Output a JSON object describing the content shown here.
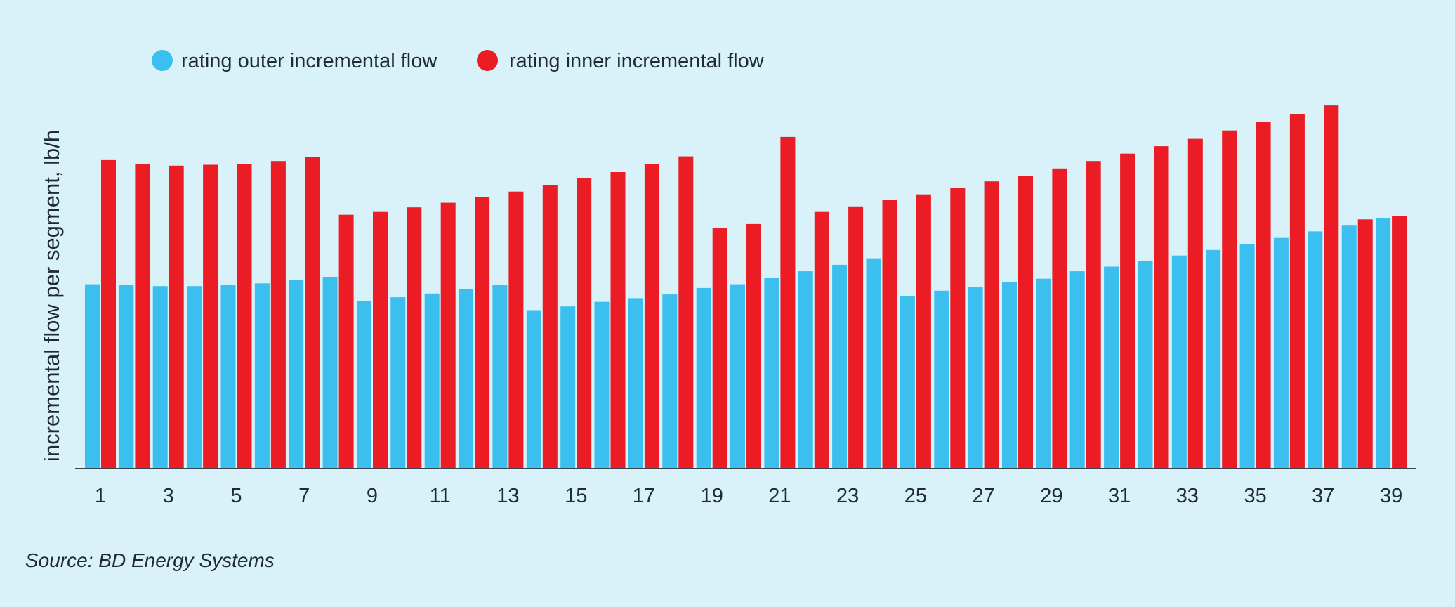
{
  "source": "Source: BD Energy Systems",
  "colors": {
    "outer": "#3bbfee",
    "inner": "#ec1c24",
    "background": "#d9f2fa"
  },
  "chart_data": {
    "type": "bar",
    "title": "",
    "xlabel": "",
    "ylabel": "incremental flow per segment, lb/h",
    "legend_position": "top-left",
    "grid": false,
    "ylim": [
      0,
      430
    ],
    "categories": [
      1,
      2,
      3,
      4,
      5,
      6,
      7,
      8,
      9,
      10,
      11,
      12,
      13,
      14,
      15,
      16,
      17,
      18,
      19,
      20,
      21,
      22,
      23,
      24,
      25,
      26,
      27,
      28,
      29,
      30,
      31,
      32,
      33,
      34,
      35,
      36,
      37,
      38,
      39
    ],
    "x_tick_labels": [
      "1",
      "3",
      "5",
      "7",
      "9",
      "11",
      "13",
      "15",
      "17",
      "19",
      "21",
      "23",
      "25",
      "27",
      "29",
      "31",
      "33",
      "35",
      "37",
      "39"
    ],
    "series": [
      {
        "name": "rating outer incremental flow",
        "color": "#3bbfee",
        "values": [
          199,
          198,
          197,
          197,
          198,
          200,
          204,
          207,
          181,
          185,
          189,
          194,
          198,
          171,
          175,
          180,
          184,
          188,
          195,
          199,
          206,
          213,
          220,
          227,
          186,
          192,
          196,
          201,
          205,
          213,
          218,
          224,
          230,
          236,
          242,
          249,
          256,
          263,
          270
        ]
      },
      {
        "name": "rating inner incremental flow",
        "color": "#ec1c24",
        "values": [
          333,
          329,
          327,
          328,
          329,
          332,
          336,
          274,
          277,
          282,
          287,
          293,
          299,
          306,
          314,
          320,
          329,
          337,
          260,
          264,
          358,
          277,
          283,
          290,
          296,
          303,
          310,
          316,
          324,
          332,
          340,
          348,
          356,
          365,
          374,
          383,
          392,
          269,
          273
        ]
      }
    ]
  }
}
